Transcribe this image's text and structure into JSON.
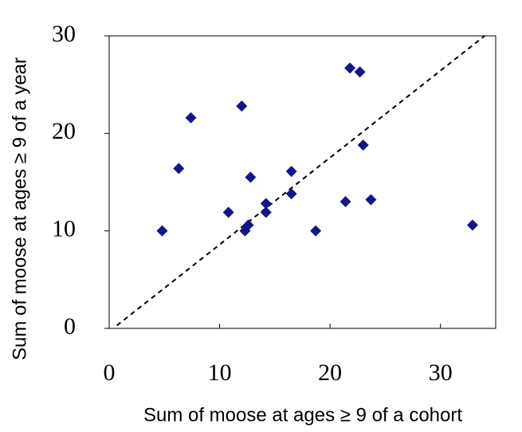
{
  "chart_data": {
    "type": "scatter",
    "xlabel": "Sum of moose at ages ≥ 9 of a cohort",
    "ylabel": "Sum of  moose at ages ≥ 9 of a year",
    "series": [
      {
        "color": "#14148c",
        "x": [
          4.8,
          6.3,
          7.4,
          10.8,
          12.0,
          12.3,
          12.6,
          12.8,
          14.2,
          14.2,
          16.5,
          16.5,
          18.7,
          21.4,
          21.8,
          22.7,
          23.0,
          23.7,
          32.9
        ],
        "values": [
          10.0,
          16.4,
          21.6,
          11.9,
          22.8,
          10.0,
          10.6,
          15.5,
          11.9,
          12.8,
          16.1,
          13.8,
          10.0,
          13.0,
          26.7,
          26.3,
          18.8,
          13.2,
          10.6
        ]
      }
    ],
    "reference_line": {
      "x": [
        0.7,
        34
      ],
      "y": [
        0.3,
        30
      ]
    },
    "xlim": [
      0,
      35
    ],
    "ylim": [
      0,
      30
    ],
    "xticks": [
      0,
      10,
      20,
      30
    ],
    "yticks": [
      0,
      10,
      20,
      30
    ]
  }
}
